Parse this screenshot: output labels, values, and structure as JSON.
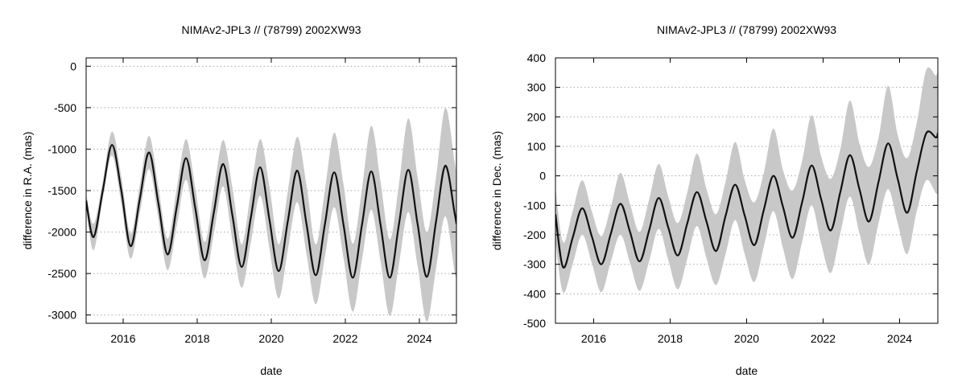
{
  "chart_data": [
    {
      "type": "area",
      "title": "NIMAv2-JPL3 // (78799) 2002XW93",
      "xlabel": "date",
      "ylabel": "difference in R.A. (mas)",
      "xlim": [
        2015.0,
        2025.0
      ],
      "ylim": [
        -3100,
        100
      ],
      "xticks": [
        2016,
        2018,
        2020,
        2022,
        2024
      ],
      "yticks": [
        -3000,
        -2500,
        -2000,
        -1500,
        -1000,
        -500,
        0
      ],
      "grid": "horizontal dotted",
      "legend": "none",
      "colors": {
        "line": "#111111",
        "band": "#c8c8c8"
      },
      "series": [
        {
          "x": [
            2015.0,
            2015.2,
            2015.45,
            2015.7,
            2015.95,
            2016.2,
            2016.45,
            2016.7,
            2016.95,
            2017.2,
            2017.45,
            2017.7,
            2017.95,
            2018.2,
            2018.45,
            2018.7,
            2018.95,
            2019.2,
            2019.45,
            2019.7,
            2019.95,
            2020.2,
            2020.45,
            2020.7,
            2020.95,
            2021.2,
            2021.45,
            2021.7,
            2021.95,
            2022.2,
            2022.45,
            2022.7,
            2022.95,
            2023.2,
            2023.45,
            2023.7,
            2023.95,
            2024.2,
            2024.45,
            2024.7,
            2024.95,
            2025.0
          ],
          "y": [
            -1620,
            -2060,
            -1500,
            -950,
            -1500,
            -2170,
            -1600,
            -1040,
            -1650,
            -2270,
            -1690,
            -1110,
            -1720,
            -2340,
            -1760,
            -1180,
            -1800,
            -2420,
            -1820,
            -1220,
            -1850,
            -2470,
            -1860,
            -1260,
            -1900,
            -2520,
            -1900,
            -1280,
            -1910,
            -2550,
            -1910,
            -1270,
            -1910,
            -2550,
            -1900,
            -1250,
            -1900,
            -2540,
            -1870,
            -1200,
            -1770,
            -1900
          ],
          "lower": [
            -1700,
            -2220,
            -1600,
            -1080,
            -1660,
            -2320,
            -1770,
            -1240,
            -1840,
            -2460,
            -1920,
            -1370,
            -1980,
            -2560,
            -2020,
            -1450,
            -2100,
            -2670,
            -2120,
            -1560,
            -2200,
            -2800,
            -2210,
            -1640,
            -2260,
            -2870,
            -2290,
            -1700,
            -2310,
            -2960,
            -2330,
            -1730,
            -2350,
            -3010,
            -2380,
            -1760,
            -2400,
            -3080,
            -2440,
            -1810,
            -2480,
            -2520
          ],
          "upper": [
            -1540,
            -1900,
            -1390,
            -790,
            -1330,
            -2020,
            -1430,
            -840,
            -1450,
            -2080,
            -1470,
            -880,
            -1470,
            -2120,
            -1500,
            -890,
            -1460,
            -2150,
            -1510,
            -880,
            -1450,
            -2150,
            -1500,
            -850,
            -1430,
            -2150,
            -1490,
            -800,
            -1420,
            -2140,
            -1480,
            -720,
            -1390,
            -2090,
            -1420,
            -630,
            -1330,
            -2000,
            -1340,
            -500,
            -1150,
            -1300
          ]
        }
      ]
    },
    {
      "type": "area",
      "title": "NIMAv2-JPL3 // (78799) 2002XW93",
      "xlabel": "date",
      "ylabel": "difference in Dec. (mas)",
      "xlim": [
        2015.0,
        2025.0
      ],
      "ylim": [
        -500,
        400
      ],
      "xticks": [
        2016,
        2018,
        2020,
        2022,
        2024
      ],
      "yticks": [
        -500,
        -400,
        -300,
        -200,
        -100,
        0,
        100,
        200,
        300,
        400
      ],
      "grid": "horizontal dotted",
      "legend": "none",
      "colors": {
        "line": "#111111",
        "band": "#c8c8c8"
      },
      "series": [
        {
          "x": [
            2015.0,
            2015.2,
            2015.45,
            2015.7,
            2015.95,
            2016.2,
            2016.45,
            2016.7,
            2016.95,
            2017.2,
            2017.45,
            2017.7,
            2017.95,
            2018.2,
            2018.45,
            2018.7,
            2018.95,
            2019.2,
            2019.45,
            2019.7,
            2019.95,
            2020.2,
            2020.45,
            2020.7,
            2020.95,
            2021.2,
            2021.45,
            2021.7,
            2021.95,
            2022.2,
            2022.45,
            2022.7,
            2022.95,
            2023.2,
            2023.45,
            2023.7,
            2023.95,
            2024.2,
            2024.45,
            2024.7,
            2024.95,
            2025.0
          ],
          "y": [
            -130,
            -310,
            -210,
            -110,
            -205,
            -300,
            -195,
            -95,
            -190,
            -290,
            -185,
            -75,
            -175,
            -270,
            -160,
            -55,
            -155,
            -255,
            -135,
            -30,
            -135,
            -235,
            -115,
            0,
            -105,
            -210,
            -90,
            35,
            -80,
            -185,
            -55,
            70,
            -45,
            -155,
            -20,
            110,
            -10,
            -125,
            15,
            145,
            130,
            145
          ],
          "lower": [
            -220,
            -395,
            -300,
            -200,
            -295,
            -395,
            -290,
            -200,
            -295,
            -390,
            -290,
            -180,
            -285,
            -385,
            -280,
            -170,
            -280,
            -370,
            -265,
            -150,
            -265,
            -360,
            -240,
            -120,
            -245,
            -350,
            -225,
            -100,
            -230,
            -330,
            -195,
            -70,
            -195,
            -300,
            -160,
            -45,
            -160,
            -265,
            -120,
            -15,
            -60,
            -50
          ],
          "upper": [
            -40,
            -225,
            -120,
            -15,
            -120,
            -205,
            -105,
            10,
            -95,
            -190,
            -80,
            40,
            -70,
            -160,
            -55,
            75,
            -45,
            -130,
            -20,
            115,
            -15,
            -90,
            10,
            160,
            20,
            -50,
            50,
            205,
            65,
            -10,
            90,
            255,
            110,
            30,
            130,
            305,
            140,
            60,
            180,
            360,
            340,
            370
          ]
        }
      ]
    }
  ]
}
